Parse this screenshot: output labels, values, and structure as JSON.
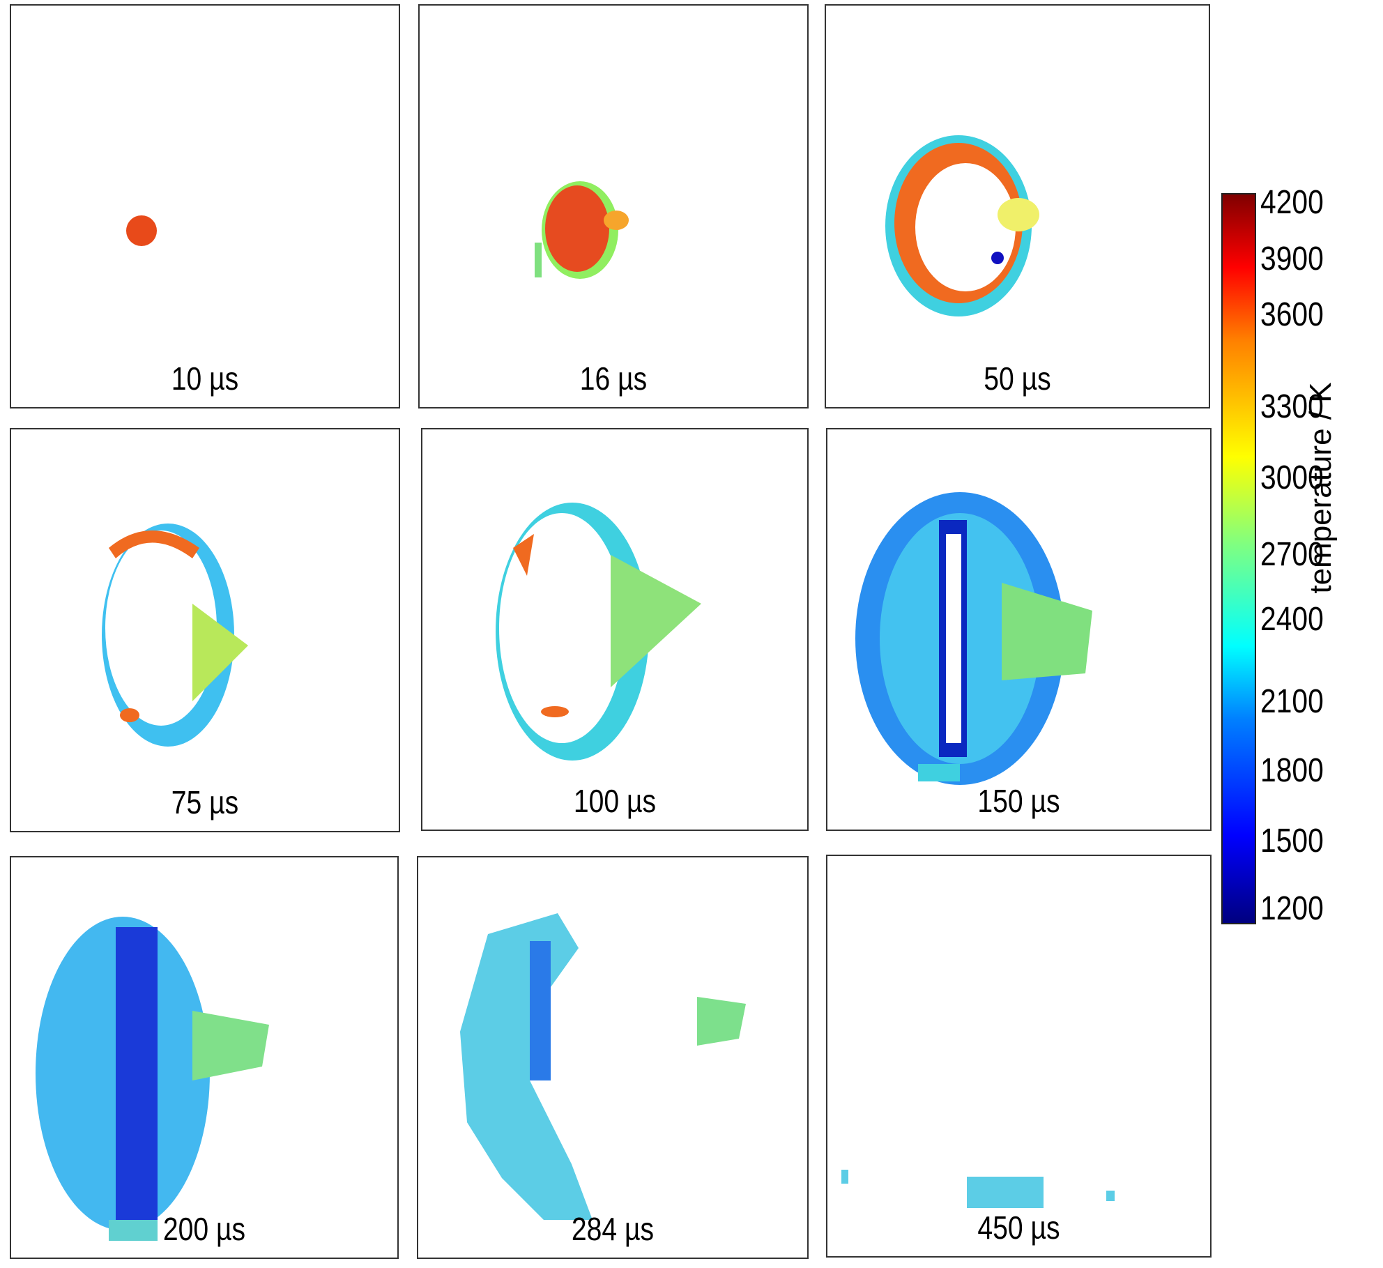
{
  "chart_data": {
    "type": "heatmap",
    "title": "",
    "panels": [
      {
        "label": "10 µs",
        "time_us": 10
      },
      {
        "label": "16 µs",
        "time_us": 16
      },
      {
        "label": "50 µs",
        "time_us": 50
      },
      {
        "label": "75 µs",
        "time_us": 75
      },
      {
        "label": "100 µs",
        "time_us": 100
      },
      {
        "label": "150 µs",
        "time_us": 150
      },
      {
        "label": "200 µs",
        "time_us": 200
      },
      {
        "label": "284 µs",
        "time_us": 284
      },
      {
        "label": "450 µs",
        "time_us": 450
      }
    ],
    "colorbar": {
      "label": "temperature / K",
      "range": [
        1200,
        4200
      ],
      "ticks": [
        "4200",
        "3900",
        "3600",
        "3300",
        "3000",
        "2700",
        "2400",
        "2100",
        "1800",
        "1500",
        "1200"
      ],
      "colormap": "jet"
    }
  }
}
